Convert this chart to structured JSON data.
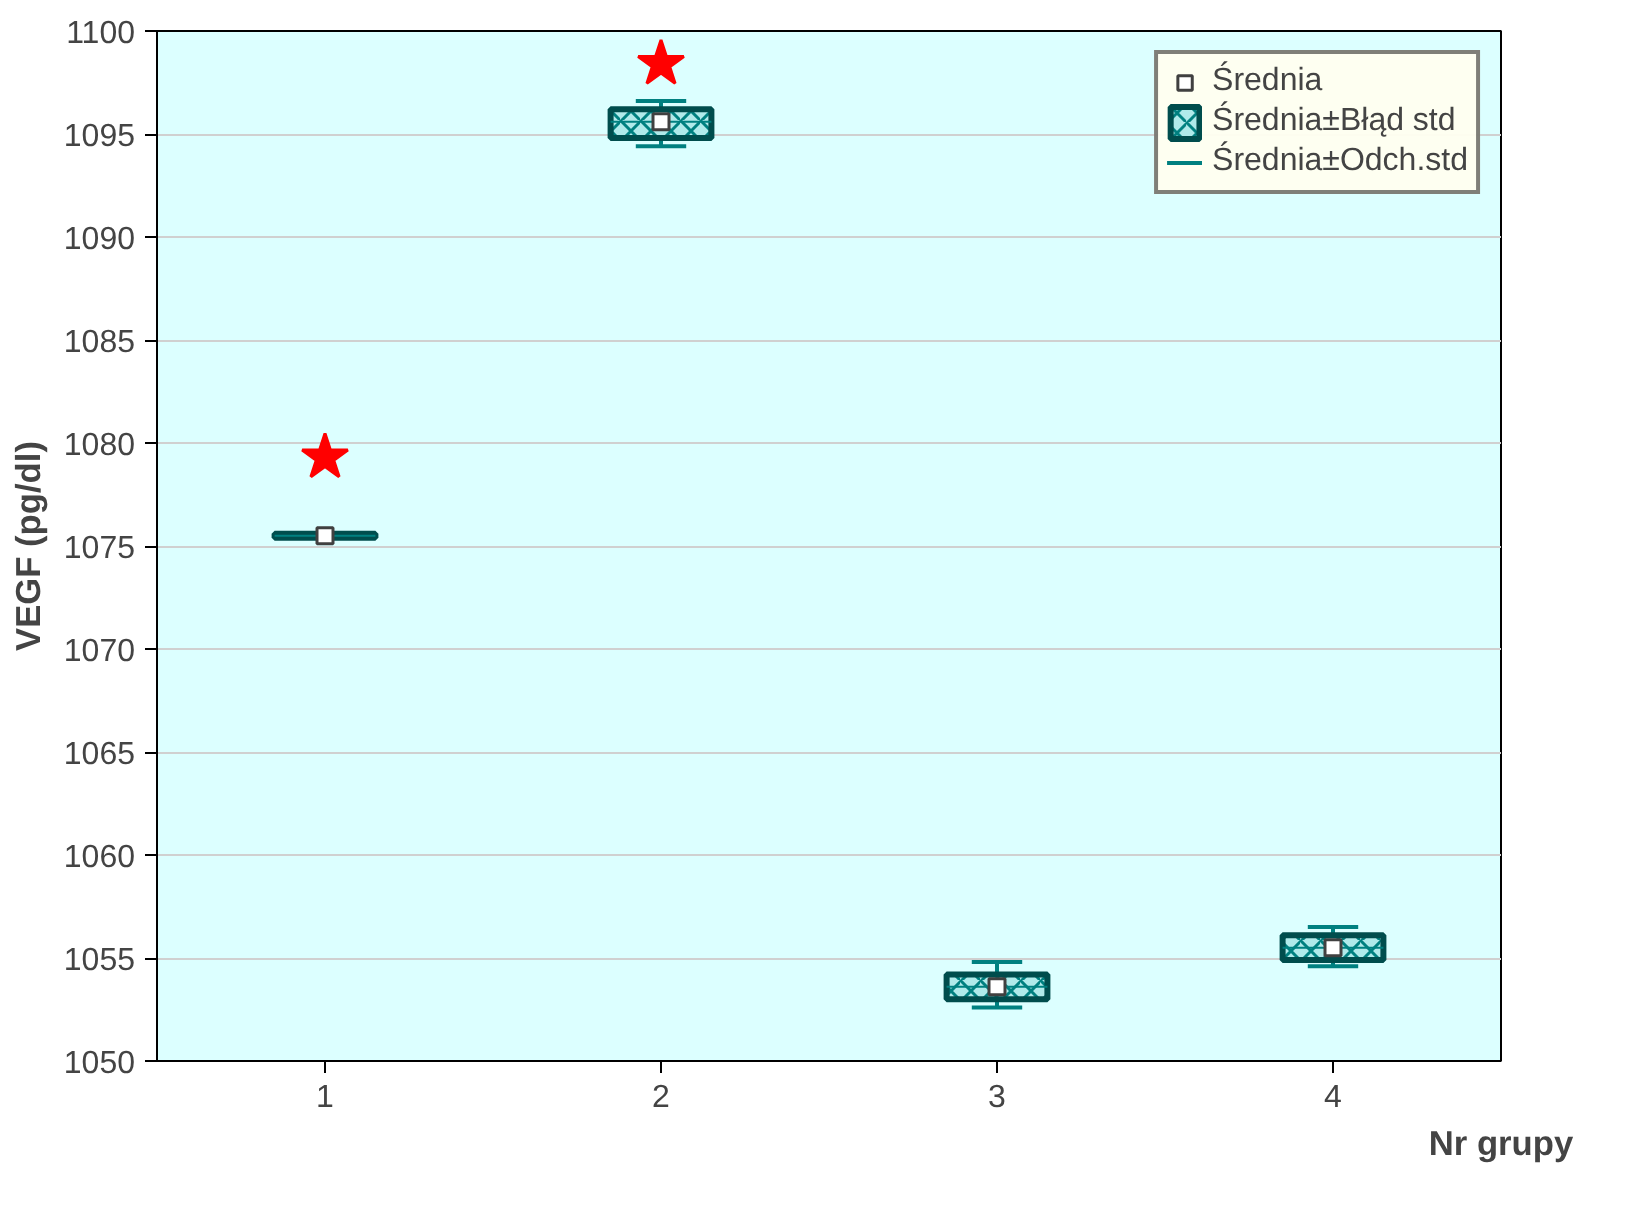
{
  "chart_data": {
    "type": "box",
    "xlabel": "Nr grupy",
    "ylabel": "VEGF (pg/dl)",
    "categories": [
      "1",
      "2",
      "3",
      "4"
    ],
    "ylim": [
      1050,
      1100
    ],
    "yticks": [
      1050,
      1055,
      1060,
      1065,
      1070,
      1075,
      1080,
      1085,
      1090,
      1095,
      1100
    ],
    "grid": "y",
    "legend": "top right",
    "annotations": [
      "Średnia±Odch.std"
    ],
    "series": [
      {
        "name": "Średnia",
        "type": "scatter",
        "marker": "square",
        "color": "#ffffff",
        "x": [
          "1",
          "2",
          "3",
          "4"
        ],
        "values": [
          1075.5,
          1095.6,
          1053.6,
          1055.5
        ]
      },
      {
        "name": "Średnia±Błąd std",
        "color": "#b0eaea",
        "boxes": [
          {
            "low": 1075.4,
            "q1": 1075.4,
            "median": 1075.5,
            "q3": 1075.6,
            "high": 1075.6
          },
          {
            "low": 1094.4,
            "q1": 1094.8,
            "median": 1095.6,
            "q3": 1096.2,
            "high": 1096.6
          },
          {
            "low": 1052.6,
            "q1": 1053.0,
            "median": 1053.6,
            "q3": 1054.2,
            "high": 1054.8
          },
          {
            "low": 1054.6,
            "q1": 1054.9,
            "median": 1055.5,
            "q3": 1056.1,
            "high": 1056.5
          }
        ]
      },
      {
        "type": "scatter",
        "marker": "star",
        "color": "#ff0000",
        "x": [
          "1",
          "2"
        ],
        "values": [
          1079.3,
          1098.4
        ]
      }
    ]
  }
}
